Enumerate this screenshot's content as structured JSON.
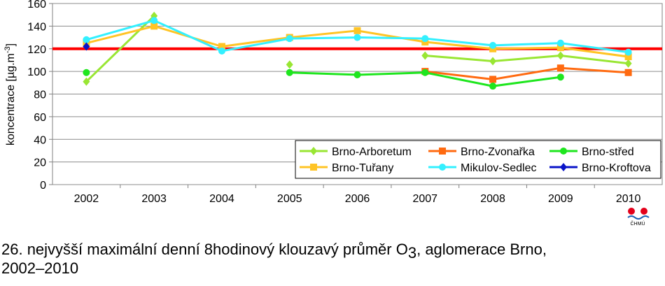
{
  "chart_data": {
    "type": "line",
    "y_label": {
      "text": "koncentrace [µg.m",
      "sup": "-3",
      "end": "]"
    },
    "categories": [
      "2002",
      "2003",
      "2004",
      "2005",
      "2006",
      "2007",
      "2008",
      "2009",
      "2010"
    ],
    "series": [
      {
        "name": "Brno-Arboretum",
        "color": "#99e633",
        "marker": "diamond",
        "values": [
          91,
          149,
          null,
          106,
          null,
          114,
          109,
          114,
          107
        ]
      },
      {
        "name": "Brno-Zvonařka",
        "color": "#ff6a10",
        "marker": "square",
        "values": [
          null,
          null,
          null,
          null,
          null,
          100,
          93,
          103,
          99
        ]
      },
      {
        "name": "Brno-střed",
        "color": "#1ee61e",
        "marker": "circle",
        "values": [
          99,
          null,
          null,
          99,
          97,
          99,
          87,
          95,
          null
        ]
      },
      {
        "name": "Brno-Tuřany",
        "color": "#ffc425",
        "marker": "square",
        "values": [
          125,
          140,
          122,
          130,
          136,
          126,
          120,
          121,
          113
        ]
      },
      {
        "name": "Mikulov-Sedlec",
        "color": "#33f0ff",
        "marker": "circle",
        "values": [
          128,
          145,
          118,
          129,
          130,
          129,
          123,
          125,
          117
        ]
      },
      {
        "name": "Brno-Kroftova",
        "color": "#0a14c8",
        "marker": "diamond",
        "values": [
          122,
          null,
          null,
          null,
          null,
          null,
          null,
          null,
          null
        ]
      }
    ],
    "threshold": {
      "value": 120,
      "color": "#ff0000"
    },
    "ylim": [
      0,
      160
    ],
    "yticks": [
      0,
      20,
      40,
      60,
      80,
      100,
      120,
      140,
      160
    ],
    "grid": true
  },
  "caption": {
    "text": "26. nejvyšší maximální denní 8hodinový klouzavý průměr O",
    "sub": "3",
    "end": ", aglomerace Brno,",
    "line2": "2002–2010"
  },
  "logo": "ČHMÚ"
}
